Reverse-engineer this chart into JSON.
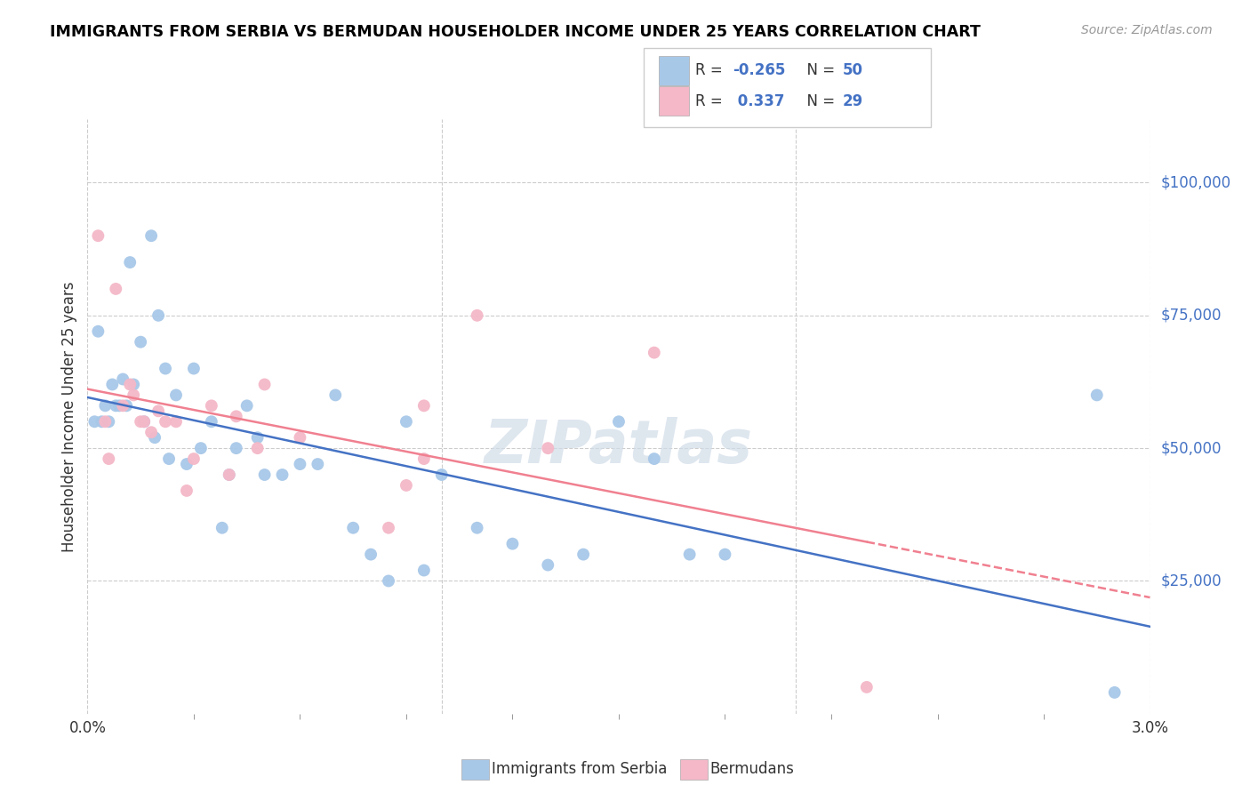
{
  "title": "IMMIGRANTS FROM SERBIA VS BERMUDAN HOUSEHOLDER INCOME UNDER 25 YEARS CORRELATION CHART",
  "source": "Source: ZipAtlas.com",
  "ylabel": "Householder Income Under 25 years",
  "legend_labels": [
    "Immigrants from Serbia",
    "Bermudans"
  ],
  "color_blue": "#a8c8e8",
  "color_pink": "#f4b8c8",
  "color_blue_line": "#4472c4",
  "color_pink_line": "#f08090",
  "ytick_labels": [
    "$25,000",
    "$50,000",
    "$75,000",
    "$100,000"
  ],
  "ytick_values": [
    25000,
    50000,
    75000,
    100000
  ],
  "ymin": 0,
  "ymax": 112000,
  "xmin": 0.0,
  "xmax": 0.03,
  "watermark": "ZIPatlas",
  "blue_scatter_x": [
    0.0002,
    0.0003,
    0.0004,
    0.0005,
    0.0006,
    0.0007,
    0.0008,
    0.0009,
    0.001,
    0.0011,
    0.0012,
    0.0013,
    0.0015,
    0.0016,
    0.0018,
    0.0019,
    0.002,
    0.0022,
    0.0023,
    0.0025,
    0.0028,
    0.003,
    0.0032,
    0.0035,
    0.0038,
    0.004,
    0.0042,
    0.0045,
    0.0048,
    0.005,
    0.0055,
    0.006,
    0.0065,
    0.007,
    0.0075,
    0.008,
    0.0085,
    0.009,
    0.0095,
    0.01,
    0.011,
    0.012,
    0.013,
    0.014,
    0.015,
    0.016,
    0.017,
    0.018,
    0.0285,
    0.029
  ],
  "blue_scatter_y": [
    55000,
    72000,
    55000,
    58000,
    55000,
    62000,
    58000,
    58000,
    63000,
    58000,
    85000,
    62000,
    70000,
    55000,
    90000,
    52000,
    75000,
    65000,
    48000,
    60000,
    47000,
    65000,
    50000,
    55000,
    35000,
    45000,
    50000,
    58000,
    52000,
    45000,
    45000,
    47000,
    47000,
    60000,
    35000,
    30000,
    25000,
    55000,
    27000,
    45000,
    35000,
    32000,
    28000,
    30000,
    55000,
    48000,
    30000,
    30000,
    60000,
    4000
  ],
  "pink_scatter_x": [
    0.0003,
    0.0005,
    0.0006,
    0.0008,
    0.001,
    0.0012,
    0.0013,
    0.0015,
    0.0016,
    0.0018,
    0.002,
    0.0022,
    0.0025,
    0.0028,
    0.003,
    0.0035,
    0.004,
    0.0042,
    0.0048,
    0.005,
    0.006,
    0.0085,
    0.009,
    0.011,
    0.013,
    0.016,
    0.022,
    0.0095,
    0.0095
  ],
  "pink_scatter_y": [
    90000,
    55000,
    48000,
    80000,
    58000,
    62000,
    60000,
    55000,
    55000,
    53000,
    57000,
    55000,
    55000,
    42000,
    48000,
    58000,
    45000,
    56000,
    50000,
    62000,
    52000,
    35000,
    43000,
    75000,
    50000,
    68000,
    5000,
    58000,
    48000
  ]
}
